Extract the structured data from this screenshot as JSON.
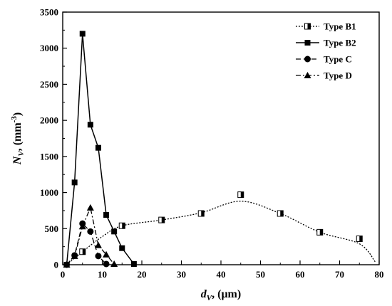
{
  "chart_data": {
    "type": "line",
    "xlabel": {
      "var": "d",
      "sub": "V",
      "unit": ", (μm)"
    },
    "ylabel": {
      "var": "N",
      "sub": "V",
      "unit": ", (mm",
      "sup": "-3",
      "close": ")"
    },
    "xlim": [
      0,
      80
    ],
    "ylim": [
      0,
      3500
    ],
    "xticks": [
      "0",
      "10",
      "20",
      "30",
      "40",
      "50",
      "60",
      "70",
      "80"
    ],
    "yticks": [
      "0",
      "500",
      "1000",
      "1500",
      "2000",
      "2500",
      "3000",
      "3500"
    ],
    "grid": false,
    "legend_position": "top-right",
    "series": [
      {
        "name": "Type B1",
        "marker": "half-square",
        "line": "dotted",
        "points": [
          [
            5,
            180
          ],
          [
            15,
            540
          ],
          [
            25,
            620
          ],
          [
            35,
            710
          ],
          [
            45,
            970
          ],
          [
            55,
            710
          ],
          [
            65,
            450
          ],
          [
            75,
            360
          ]
        ],
        "curve": [
          [
            1,
            0
          ],
          [
            5,
            180
          ],
          [
            10,
            390
          ],
          [
            15,
            540
          ],
          [
            25,
            620
          ],
          [
            35,
            720
          ],
          [
            45,
            880
          ],
          [
            55,
            710
          ],
          [
            65,
            450
          ],
          [
            75,
            290
          ],
          [
            79,
            40
          ]
        ]
      },
      {
        "name": "Type B2",
        "marker": "square",
        "line": "solid",
        "points": [
          [
            1,
            0
          ],
          [
            3,
            1140
          ],
          [
            5,
            3200
          ],
          [
            7,
            1940
          ],
          [
            9,
            1620
          ],
          [
            11,
            690
          ],
          [
            13,
            460
          ],
          [
            15,
            230
          ],
          [
            18,
            10
          ]
        ],
        "curve": [
          [
            1,
            0
          ],
          [
            3,
            1140
          ],
          [
            5,
            3200
          ],
          [
            7,
            1940
          ],
          [
            9,
            1620
          ],
          [
            11,
            690
          ],
          [
            13,
            460
          ],
          [
            15,
            230
          ],
          [
            18,
            10
          ]
        ]
      },
      {
        "name": "Type C",
        "marker": "circle",
        "line": "dashed",
        "points": [
          [
            1,
            0
          ],
          [
            3,
            130
          ],
          [
            5,
            570
          ],
          [
            7,
            460
          ],
          [
            9,
            120
          ],
          [
            11,
            10
          ]
        ],
        "curve": [
          [
            1,
            0
          ],
          [
            3,
            130
          ],
          [
            5,
            570
          ],
          [
            7,
            460
          ],
          [
            9,
            120
          ],
          [
            11,
            10
          ]
        ]
      },
      {
        "name": "Type D",
        "marker": "triangle",
        "line": "dashdot",
        "points": [
          [
            1,
            0
          ],
          [
            3,
            120
          ],
          [
            5,
            530
          ],
          [
            7,
            790
          ],
          [
            9,
            270
          ],
          [
            11,
            140
          ],
          [
            13,
            10
          ]
        ],
        "curve": [
          [
            1,
            0
          ],
          [
            3,
            120
          ],
          [
            5,
            530
          ],
          [
            7,
            790
          ],
          [
            9,
            270
          ],
          [
            11,
            140
          ],
          [
            13,
            10
          ]
        ]
      }
    ]
  }
}
